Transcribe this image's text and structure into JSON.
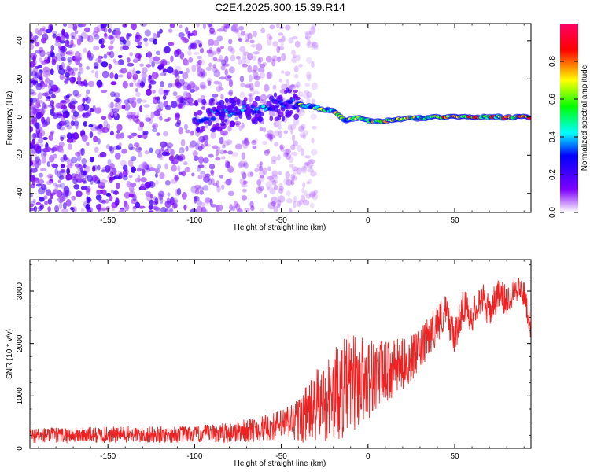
{
  "title": "C2E4.2025.300.15.39.R14",
  "chart_data": [
    {
      "type": "heatmap",
      "title": "",
      "xlabel": "Height of straight line (km)",
      "ylabel": "Frequency (Hz)",
      "xlim": [
        -195,
        94
      ],
      "ylim": [
        -50,
        49
      ],
      "xticks": [
        "-150",
        "-100",
        "-50",
        "0",
        "50"
      ],
      "yticks": [
        "-40",
        "-20",
        "0",
        "20",
        "40"
      ],
      "grid": false,
      "colorbar": {
        "label": "Normalized spectral amplitude",
        "range": [
          0,
          1
        ],
        "ticks": [
          "0.0",
          "0.2",
          "0.4",
          "0.6",
          "0.8"
        ],
        "colormap": [
          "#ffffff",
          "#6600ff",
          "#0000ff",
          "#00ffff",
          "#00ff00",
          "#ffff00",
          "#ff0000",
          "#ff0066"
        ]
      },
      "ridge": {
        "description": "dominant frequency ridge",
        "x": [
          -100,
          -80,
          -60,
          -45,
          -38,
          -30,
          -20,
          -12,
          -5,
          0,
          10,
          20,
          40,
          60,
          80,
          94
        ],
        "y": [
          0,
          2,
          5,
          8,
          6,
          5,
          3,
          -2,
          0,
          -2,
          -2,
          -1,
          0,
          0,
          0,
          0
        ]
      },
      "noise_region": {
        "x_from": -195,
        "x_to": -40,
        "y_from": -50,
        "y_to": 49
      }
    },
    {
      "type": "line",
      "title": "",
      "xlabel": "Height of straight line (km)",
      "ylabel": "SNR (10 * v/v)",
      "xlim": [
        -195,
        94
      ],
      "ylim": [
        0,
        3600
      ],
      "xticks": [
        "-150",
        "-100",
        "-50",
        "0",
        "50"
      ],
      "yticks": [
        "0",
        "1000",
        "2000",
        "3000"
      ],
      "grid": false,
      "series": [
        {
          "color": "#ee2222",
          "x": [
            -195,
            -170,
            -150,
            -120,
            -100,
            -80,
            -60,
            -50,
            -40,
            -30,
            -20,
            -12,
            -5,
            0,
            10,
            20,
            30,
            40,
            45,
            50,
            55,
            60,
            65,
            70,
            75,
            80,
            85,
            90,
            94
          ],
          "y": [
            250,
            250,
            260,
            260,
            270,
            300,
            380,
            450,
            550,
            800,
            1000,
            1200,
            1300,
            1350,
            1450,
            1600,
            1850,
            2400,
            2600,
            2100,
            2750,
            2500,
            2900,
            2600,
            2950,
            2800,
            3100,
            2950,
            2300
          ],
          "noise_amplitude": [
            150,
            150,
            160,
            160,
            160,
            200,
            250,
            300,
            450,
            700,
            900,
            1000,
            900,
            800,
            600,
            500,
            400,
            400,
            350,
            300,
            350,
            300,
            350,
            300,
            300,
            300,
            300,
            250,
            250
          ]
        }
      ]
    }
  ]
}
